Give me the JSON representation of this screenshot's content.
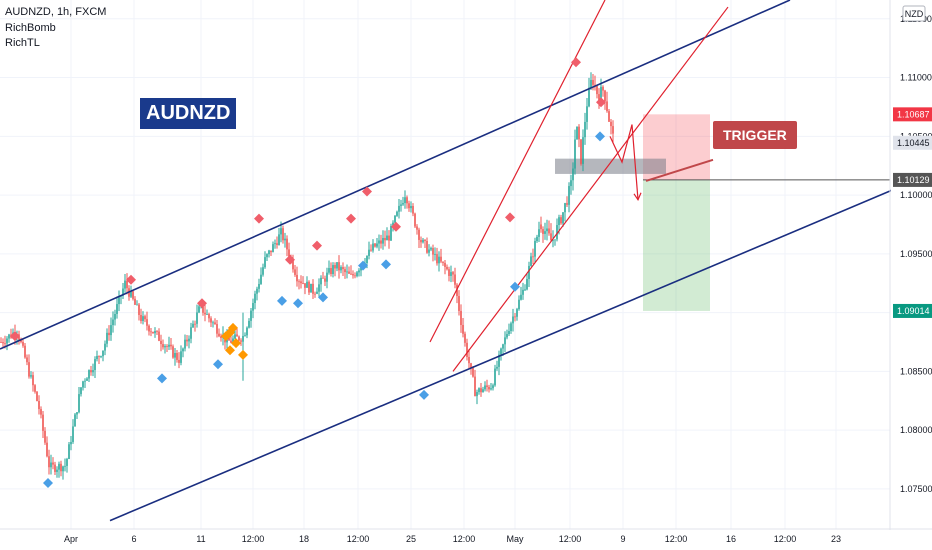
{
  "header": {
    "title": "AUDNZD, 1h, FXCM",
    "indicators": [
      "RichBomb",
      "RichTL"
    ]
  },
  "symbol_label": "AUDNZD",
  "trigger_label": "TRIGGER",
  "currency": "NZD",
  "price_tags": [
    {
      "value": "1.10687",
      "color": "#f23645",
      "text_color": "#ffffff"
    },
    {
      "value": "1.10445",
      "color": "#e0e3eb",
      "text_color": "#131722"
    },
    {
      "value": "1.10129",
      "color": "#555555",
      "text_color": "#ffffff"
    },
    {
      "value": "1.09014",
      "color": "#089981",
      "text_color": "#ffffff"
    }
  ],
  "chart_data": {
    "type": "candlestick",
    "title": "AUDNZD, 1h, FXCM",
    "ylim": [
      1.0715,
      1.1166
    ],
    "y_ticks": [
      "1.11500",
      "1.11000",
      "1.10500",
      "1.10000",
      "1.09500",
      "1.09000",
      "1.08500",
      "1.08000",
      "1.07500"
    ],
    "x_ticks": [
      "Apr",
      "6",
      "11",
      "12:00",
      "18",
      "12:00",
      "25",
      "12:00",
      "May",
      "12:00",
      "9",
      "12:00",
      "16",
      "12:00",
      "23"
    ],
    "price_path": [
      {
        "t": 0,
        "p": 1.0875
      },
      {
        "t": 0.03,
        "p": 1.0885
      },
      {
        "t": 0.07,
        "p": 1.082
      },
      {
        "t": 0.09,
        "p": 1.0768
      },
      {
        "t": 0.12,
        "p": 1.077
      },
      {
        "t": 0.15,
        "p": 1.084
      },
      {
        "t": 0.19,
        "p": 1.087
      },
      {
        "t": 0.23,
        "p": 1.0925
      },
      {
        "t": 0.26,
        "p": 1.0895
      },
      {
        "t": 0.29,
        "p": 1.088
      },
      {
        "t": 0.33,
        "p": 1.086
      },
      {
        "t": 0.37,
        "p": 1.0905
      },
      {
        "t": 0.42,
        "p": 1.0875
      },
      {
        "t": 0.45,
        "p": 1.088
      },
      {
        "t": 0.49,
        "p": 1.0945
      },
      {
        "t": 0.52,
        "p": 1.0968
      },
      {
        "t": 0.55,
        "p": 1.093
      },
      {
        "t": 0.58,
        "p": 1.0918
      },
      {
        "t": 0.62,
        "p": 1.094
      },
      {
        "t": 0.65,
        "p": 1.093
      },
      {
        "t": 0.69,
        "p": 1.0955
      },
      {
        "t": 0.72,
        "p": 1.0965
      },
      {
        "t": 0.75,
        "p": 1.1002
      },
      {
        "t": 0.78,
        "p": 1.096
      },
      {
        "t": 0.81,
        "p": 1.0945
      },
      {
        "t": 0.84,
        "p": 1.093
      },
      {
        "t": 0.86,
        "p": 1.0875
      },
      {
        "t": 0.88,
        "p": 1.0832
      },
      {
        "t": 0.91,
        "p": 1.0838
      },
      {
        "t": 0.94,
        "p": 1.0885
      },
      {
        "t": 0.97,
        "p": 1.092
      },
      {
        "t": 1.0,
        "p": 1.0975
      }
    ],
    "rally_path": [
      {
        "t": 0,
        "p": 1.0975
      },
      {
        "t": 0.15,
        "p": 1.096
      },
      {
        "t": 0.3,
        "p": 1.0985
      },
      {
        "t": 0.42,
        "p": 1.101
      },
      {
        "t": 0.48,
        "p": 1.106
      },
      {
        "t": 0.55,
        "p": 1.103
      },
      {
        "t": 0.62,
        "p": 1.1075
      },
      {
        "t": 0.7,
        "p": 1.11
      },
      {
        "t": 0.78,
        "p": 1.1085
      },
      {
        "t": 0.86,
        "p": 1.109
      },
      {
        "t": 0.93,
        "p": 1.1065
      },
      {
        "t": 1.0,
        "p": 1.1045
      }
    ],
    "sell_markers": [
      {
        "x": 15,
        "p": 1.088
      },
      {
        "x": 131,
        "p": 1.0928
      },
      {
        "x": 202,
        "p": 1.0908
      },
      {
        "x": 259,
        "p": 1.098
      },
      {
        "x": 290,
        "p": 1.0945
      },
      {
        "x": 317,
        "p": 1.0957
      },
      {
        "x": 351,
        "p": 1.098
      },
      {
        "x": 367,
        "p": 1.1003
      },
      {
        "x": 396,
        "p": 1.0973
      },
      {
        "x": 510,
        "p": 1.0981
      },
      {
        "x": 576,
        "p": 1.1113
      },
      {
        "x": 601,
        "p": 1.1079
      }
    ],
    "buy_markers": [
      {
        "x": 48,
        "p": 1.0755
      },
      {
        "x": 162,
        "p": 1.0844
      },
      {
        "x": 218,
        "p": 1.0856
      },
      {
        "x": 282,
        "p": 1.091
      },
      {
        "x": 298,
        "p": 1.0908
      },
      {
        "x": 323,
        "p": 1.0913
      },
      {
        "x": 363,
        "p": 1.094
      },
      {
        "x": 386,
        "p": 1.0941
      },
      {
        "x": 424,
        "p": 1.083
      },
      {
        "x": 515,
        "p": 1.0922
      },
      {
        "x": 600,
        "p": 1.105
      }
    ],
    "orange_markers": [
      {
        "x": 226,
        "p": 1.088
      },
      {
        "x": 230,
        "p": 1.0883
      },
      {
        "x": 233,
        "p": 1.0887
      },
      {
        "x": 230,
        "p": 1.0868
      },
      {
        "x": 236,
        "p": 1.0874
      },
      {
        "x": 243,
        "p": 1.0864
      }
    ],
    "channel_lines": [
      {
        "color": "#1a2e80",
        "p1": {
          "x": 0,
          "p": 1.0869
        },
        "p2": {
          "x": 790,
          "p": 1.1166
        }
      },
      {
        "color": "#1a2e80",
        "p1": {
          "x": 110,
          "p": 1.0723
        },
        "p2": {
          "x": 897,
          "p": 1.1006
        }
      }
    ],
    "red_lines": [
      {
        "color": "#e0212e",
        "p1": {
          "x": 430,
          "p": 1.0875
        },
        "p2": {
          "x": 605,
          "p": 1.1166
        }
      },
      {
        "color": "#e0212e",
        "p1": {
          "x": 453,
          "p": 1.085
        },
        "p2": {
          "x": 728,
          "p": 1.116
        }
      }
    ],
    "projection_path": [
      {
        "x": 610,
        "p": 1.105
      },
      {
        "x": 622,
        "p": 1.1028
      },
      {
        "x": 632,
        "p": 1.106
      },
      {
        "x": 638,
        "p": 1.0996
      }
    ],
    "consolidation_box": {
      "x1": 555,
      "x2": 666,
      "p1": 1.1031,
      "p2": 1.1018
    },
    "position": {
      "x1": 643,
      "x2": 710,
      "entry": 1.10129,
      "stop": 1.10687,
      "target": 1.09014
    },
    "trigger_connector": [
      {
        "x": 713,
        "p": 1.103
      },
      {
        "x": 646,
        "p": 1.1012
      }
    ]
  }
}
